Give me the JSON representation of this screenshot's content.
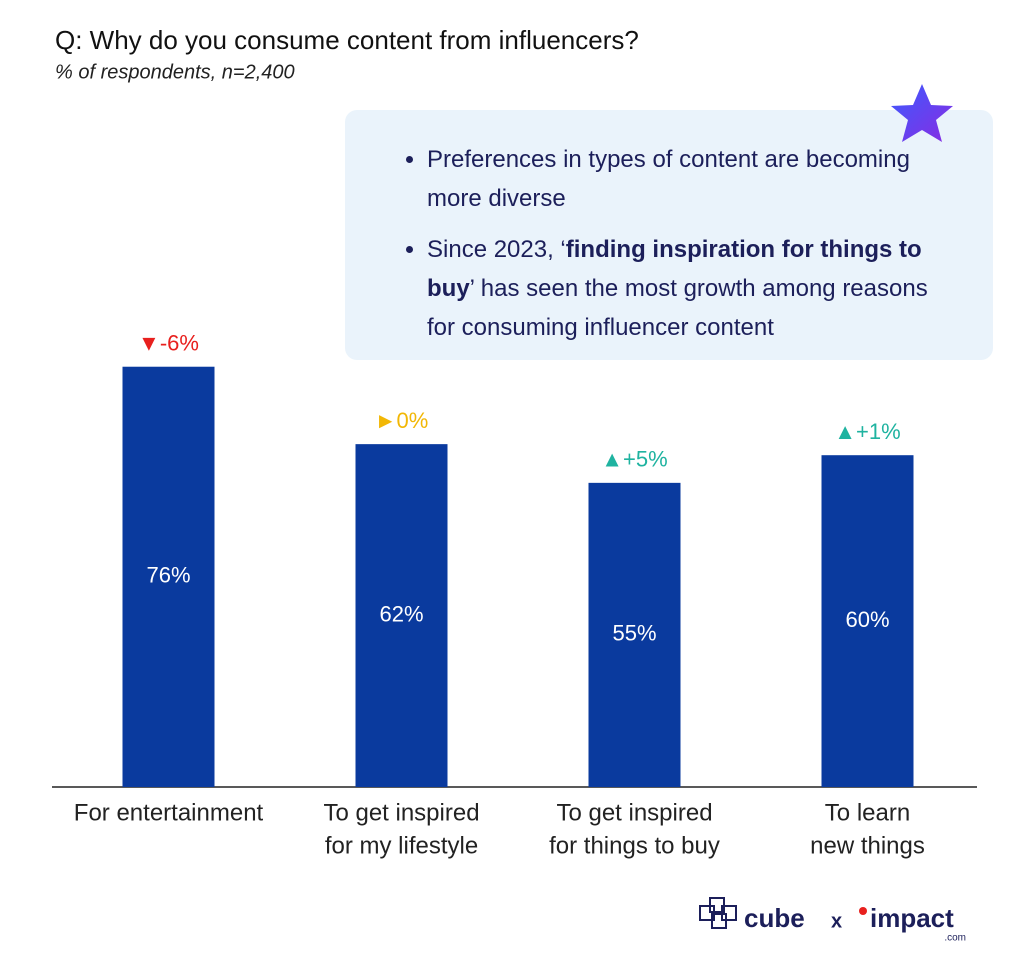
{
  "title": "Q: Why do you consume content from influencers?",
  "subtitle": "% of respondents, n=2,400",
  "notes": [
    [
      "Preferences in types of content are becoming more diverse"
    ],
    [
      "Since 2023, ‘",
      "finding inspiration for things to buy",
      "’ has seen the most growth among reasons for consuming influencer content"
    ]
  ],
  "chart_data": {
    "type": "bar",
    "categories": [
      [
        "For entertainment"
      ],
      [
        "To get inspired",
        "for my lifestyle"
      ],
      [
        "To get inspired",
        "for things to buy"
      ],
      [
        "To learn",
        "new things"
      ]
    ],
    "values": [
      76,
      62,
      55,
      60
    ],
    "value_labels": [
      "76%",
      "62%",
      "55%",
      "60%"
    ],
    "changes": [
      -6,
      0,
      5,
      1
    ],
    "change_labels": [
      "▼-6%",
      "►0%",
      "▲+5%",
      "▲+1%"
    ],
    "change_colors": {
      "down": "#e8201e",
      "flat": "#f2b705",
      "up": "#1fb3a0"
    },
    "color": "#0a3a9e",
    "ylim": [
      0,
      100
    ]
  },
  "logo": {
    "brand": "cube",
    "separator": "x",
    "partner": "impact",
    "partner_suffix": ".com"
  }
}
